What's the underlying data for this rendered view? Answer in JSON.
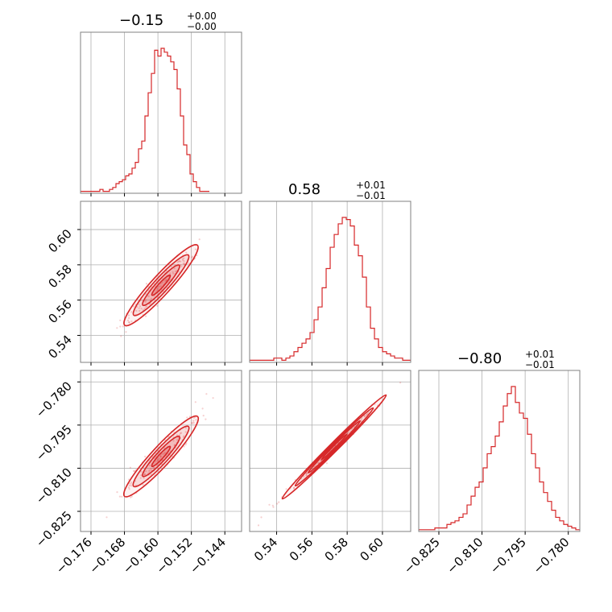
{
  "chart_data": {
    "type": "corner",
    "color": "#d62728",
    "parameters": [
      {
        "title": {
          "value": "−0.15",
          "plus": "+0.00",
          "minus": "−0.00"
        },
        "range": [
          -0.1785,
          -0.14
        ],
        "ticks": [
          {
            "value": -0.176,
            "label": "−0.176"
          },
          {
            "value": -0.168,
            "label": "−0.168"
          },
          {
            "value": -0.16,
            "label": "−0.160"
          },
          {
            "value": -0.152,
            "label": "−0.152"
          },
          {
            "value": -0.144,
            "label": "−0.144"
          }
        ]
      },
      {
        "title": {
          "value": "0.58",
          "plus": "+0.01",
          "minus": "−0.01"
        },
        "range": [
          0.5247,
          0.616
        ],
        "ticks": [
          {
            "value": 0.54,
            "label": "0.54"
          },
          {
            "value": 0.56,
            "label": "0.56"
          },
          {
            "value": 0.58,
            "label": "0.58"
          },
          {
            "value": 0.6,
            "label": "0.60"
          }
        ]
      },
      {
        "title": {
          "value": "−0.80",
          "plus": "+0.01",
          "minus": "−0.01"
        },
        "range": [
          -0.832,
          -0.776
        ],
        "ticks": [
          {
            "value": -0.825,
            "label": "−0.825"
          },
          {
            "value": -0.81,
            "label": "−0.810"
          },
          {
            "value": -0.795,
            "label": "−0.795"
          },
          {
            "value": -0.78,
            "label": "−0.780"
          }
        ]
      }
    ],
    "histograms": [
      {
        "bin_start": -0.1785,
        "bin_width": 0.00077,
        "counts": [
          1,
          1,
          1,
          1,
          1,
          1,
          2,
          1,
          1,
          2,
          3,
          5,
          6,
          7,
          9,
          10,
          13,
          16,
          23,
          27,
          40,
          52,
          62,
          74,
          71,
          75,
          73,
          71,
          68,
          64,
          54,
          40,
          25,
          20,
          10,
          6,
          3,
          1,
          1,
          1
        ]
      },
      {
        "bin_start": 0.5247,
        "bin_width": 0.002283,
        "counts": [
          1,
          1,
          1,
          1,
          1,
          1,
          2,
          2,
          1,
          2,
          3,
          5,
          7,
          9,
          11,
          14,
          20,
          26,
          35,
          44,
          54,
          60,
          65,
          68,
          67,
          64,
          55,
          50,
          40,
          26,
          16,
          11,
          7,
          5,
          4,
          3,
          2,
          2,
          1,
          1
        ]
      },
      {
        "bin_start": -0.832,
        "bin_width": 0.0014,
        "counts": [
          1,
          1,
          1,
          1,
          2,
          2,
          2,
          4,
          5,
          6,
          8,
          10,
          15,
          20,
          25,
          28,
          36,
          44,
          48,
          54,
          62,
          71,
          78,
          82,
          73,
          67,
          64,
          55,
          44,
          36,
          28,
          22,
          17,
          12,
          8,
          6,
          4,
          3,
          2,
          1
        ]
      }
    ],
    "pair_correlation": [
      {
        "x": 0,
        "y": 1,
        "trend": [
          [
            -0.1785,
            0.5183
          ],
          [
            -0.14,
            0.6186
          ]
        ]
      },
      {
        "x": 0,
        "y": 2,
        "trend": [
          [
            -0.1785,
            -0.8364
          ],
          [
            -0.14,
            -0.7754
          ]
        ]
      },
      {
        "x": 1,
        "y": 2,
        "trend": [
          [
            0.5247,
            -0.832
          ],
          [
            0.616,
            -0.776
          ]
        ]
      }
    ]
  }
}
